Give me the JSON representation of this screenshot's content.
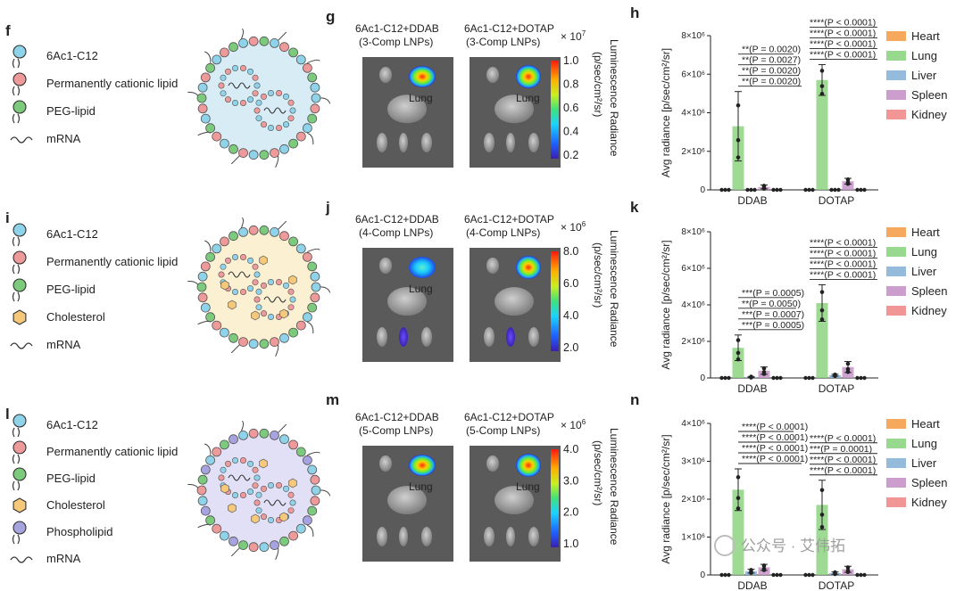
{
  "panel_letters": {
    "f": "f",
    "g": "g",
    "h": "h",
    "i": "i",
    "j": "j",
    "k": "k",
    "l": "l",
    "m": "m",
    "n": "n"
  },
  "legends": {
    "f": [
      "6Ac1-C12",
      "Permanently cationic lipid",
      "PEG-lipid",
      "mRNA"
    ],
    "i": [
      "6Ac1-C12",
      "Permanently cationic lipid",
      "PEG-lipid",
      "Cholesterol",
      "mRNA"
    ],
    "l": [
      "6Ac1-C12",
      "Permanently cationic lipid",
      "PEG-lipid",
      "Cholesterol",
      "Phospholipid",
      "mRNA"
    ]
  },
  "colors": {
    "ionizable": "#8fd3ea",
    "cationic": "#ef9a9a",
    "peg": "#7ccb7c",
    "cholesterol": "#f5c87a",
    "phospholipid": "#a7a3e0",
    "heart": "#f5a04a",
    "lung": "#8ed483",
    "liver": "#8ab4d8",
    "spleen": "#c594c8",
    "kidney": "#ef8a8a",
    "np_f": "#d8ecf6",
    "np_i": "#fbf0d2",
    "np_l": "#e2e0f6"
  },
  "imaging": {
    "g": {
      "title_left": "6Ac1-C12+DDAB",
      "sub_left": "(3-Comp LNPs)",
      "title_right": "6Ac1-C12+DOTAP",
      "sub_right": "(3-Comp LNPs)",
      "multiplier": "× 10",
      "exp": "7",
      "ticks": [
        "1.0",
        "0.8",
        "0.6",
        "0.4",
        "0.2"
      ],
      "organ_left": "Lung",
      "organ_right": "Lung",
      "radiance_label": "Luminescence Radiance",
      "units_label": "(p/sec/cm²/sr)"
    },
    "j": {
      "title_left": "6Ac1-C12+DDAB",
      "sub_left": "(4-Comp LNPs)",
      "title_right": "6Ac1-C12+DOTAP",
      "sub_right": "(4-Comp LNPs)",
      "multiplier": "× 10",
      "exp": "6",
      "ticks": [
        "8.0",
        "6.0",
        "4.0",
        "2.0"
      ],
      "organ_left": "Lung",
      "organ_right": "",
      "radiance_label": "Luminescence Radiance",
      "units_label": "(p/sec/cm²/sr)"
    },
    "m": {
      "title_left": "6Ac1-C12+DDAB",
      "sub_left": "(5-Comp LNPs)",
      "title_right": "6Ac1-C12+DOTAP",
      "sub_right": "(5-Comp LNPs)",
      "multiplier": "× 10",
      "exp": "6",
      "ticks": [
        "4.0",
        "3.0",
        "2.0",
        "1.0"
      ],
      "organ_left": "Lung",
      "organ_right": "Lung",
      "radiance_label": "Luminescence Radiance",
      "units_label": "(p/sec/cm²/sr)"
    }
  },
  "chart_data": [
    {
      "panel": "h",
      "type": "bar",
      "ylabel": "Avg radiance [p/sec/cm²/sr]",
      "ylim": [
        0,
        8000000
      ],
      "ytick_labels": [
        "0",
        "2×10⁶",
        "4×10⁶",
        "6×10⁶",
        "8×10⁶"
      ],
      "categories": [
        "DDAB",
        "DOTAP"
      ],
      "legend": [
        "Heart",
        "Lung",
        "Liver",
        "Spleen",
        "Kidney"
      ],
      "series": [
        {
          "name": "Heart",
          "values": [
            0,
            0
          ],
          "err": [
            0,
            0
          ]
        },
        {
          "name": "Lung",
          "values": [
            3300000,
            5700000
          ],
          "err": [
            1800000,
            800000
          ]
        },
        {
          "name": "Liver",
          "values": [
            0,
            0
          ],
          "err": [
            0,
            0
          ]
        },
        {
          "name": "Spleen",
          "values": [
            150000,
            450000
          ],
          "err": [
            100000,
            150000
          ]
        },
        {
          "name": "Kidney",
          "values": [
            0,
            0
          ],
          "err": [
            0,
            0
          ]
        }
      ],
      "sig_left": [
        "**(P = 0.0020)",
        "**(P = 0.0027)",
        "**(P = 0.0020)",
        "**(P = 0.0020)"
      ],
      "sig_right": [
        "****(P < 0.0001)",
        "****(P < 0.0001)",
        "****(P < 0.0001)",
        "****(P < 0.0001)"
      ]
    },
    {
      "panel": "k",
      "type": "bar",
      "ylabel": "Avg radiance [p/sec/cm²/sr]",
      "ylim": [
        0,
        8000000
      ],
      "ytick_labels": [
        "0",
        "2×10⁶",
        "4×10⁶",
        "6×10⁶",
        "8×10⁶"
      ],
      "categories": [
        "DDAB",
        "DOTAP"
      ],
      "legend": [
        "Heart",
        "Lung",
        "Liver",
        "Spleen",
        "Kidney"
      ],
      "series": [
        {
          "name": "Heart",
          "values": [
            0,
            0
          ],
          "err": [
            0,
            0
          ]
        },
        {
          "name": "Lung",
          "values": [
            1650000,
            4100000
          ],
          "err": [
            700000,
            1000000
          ]
        },
        {
          "name": "Liver",
          "values": [
            50000,
            150000
          ],
          "err": [
            30000,
            50000
          ]
        },
        {
          "name": "Spleen",
          "values": [
            400000,
            600000
          ],
          "err": [
            200000,
            300000
          ]
        },
        {
          "name": "Kidney",
          "values": [
            0,
            0
          ],
          "err": [
            0,
            0
          ]
        }
      ],
      "sig_left": [
        "***(P = 0.0005)",
        "**(P = 0.0050)",
        "***(P = 0.0007)",
        "***(P = 0.0005)"
      ],
      "sig_right": [
        "****(P < 0.0001)",
        "****(P < 0.0001)",
        "****(P < 0.0001)",
        "****(P < 0.0001)"
      ]
    },
    {
      "panel": "n",
      "type": "bar",
      "ylabel": "Avg radiance [p/sec/cm²/sr]",
      "ylim": [
        0,
        4000000
      ],
      "ytick_labels": [
        "0",
        "1×10⁶",
        "2×10⁶",
        "3×10⁶",
        "4×10⁶"
      ],
      "categories": [
        "DDAB",
        "DOTAP"
      ],
      "legend": [
        "Heart",
        "Lung",
        "Liver",
        "Spleen",
        "Kidney"
      ],
      "series": [
        {
          "name": "Heart",
          "values": [
            0,
            0
          ],
          "err": [
            0,
            0
          ]
        },
        {
          "name": "Lung",
          "values": [
            2250000,
            1850000
          ],
          "err": [
            550000,
            650000
          ]
        },
        {
          "name": "Liver",
          "values": [
            100000,
            50000
          ],
          "err": [
            50000,
            30000
          ]
        },
        {
          "name": "Spleen",
          "values": [
            200000,
            150000
          ],
          "err": [
            80000,
            80000
          ]
        },
        {
          "name": "Kidney",
          "values": [
            0,
            0
          ],
          "err": [
            0,
            0
          ]
        }
      ],
      "sig_left": [
        "****(P < 0.0001)",
        "****(P < 0.0001)",
        "****(P < 0.0001)",
        "****(P < 0.0001)"
      ],
      "sig_right": [
        "****(P < 0.0001)",
        "***(P = 0.0001)",
        "****(P < 0.0001)",
        "****(P < 0.0001)"
      ]
    }
  ],
  "watermark": "公众号 · 艾伟拓"
}
